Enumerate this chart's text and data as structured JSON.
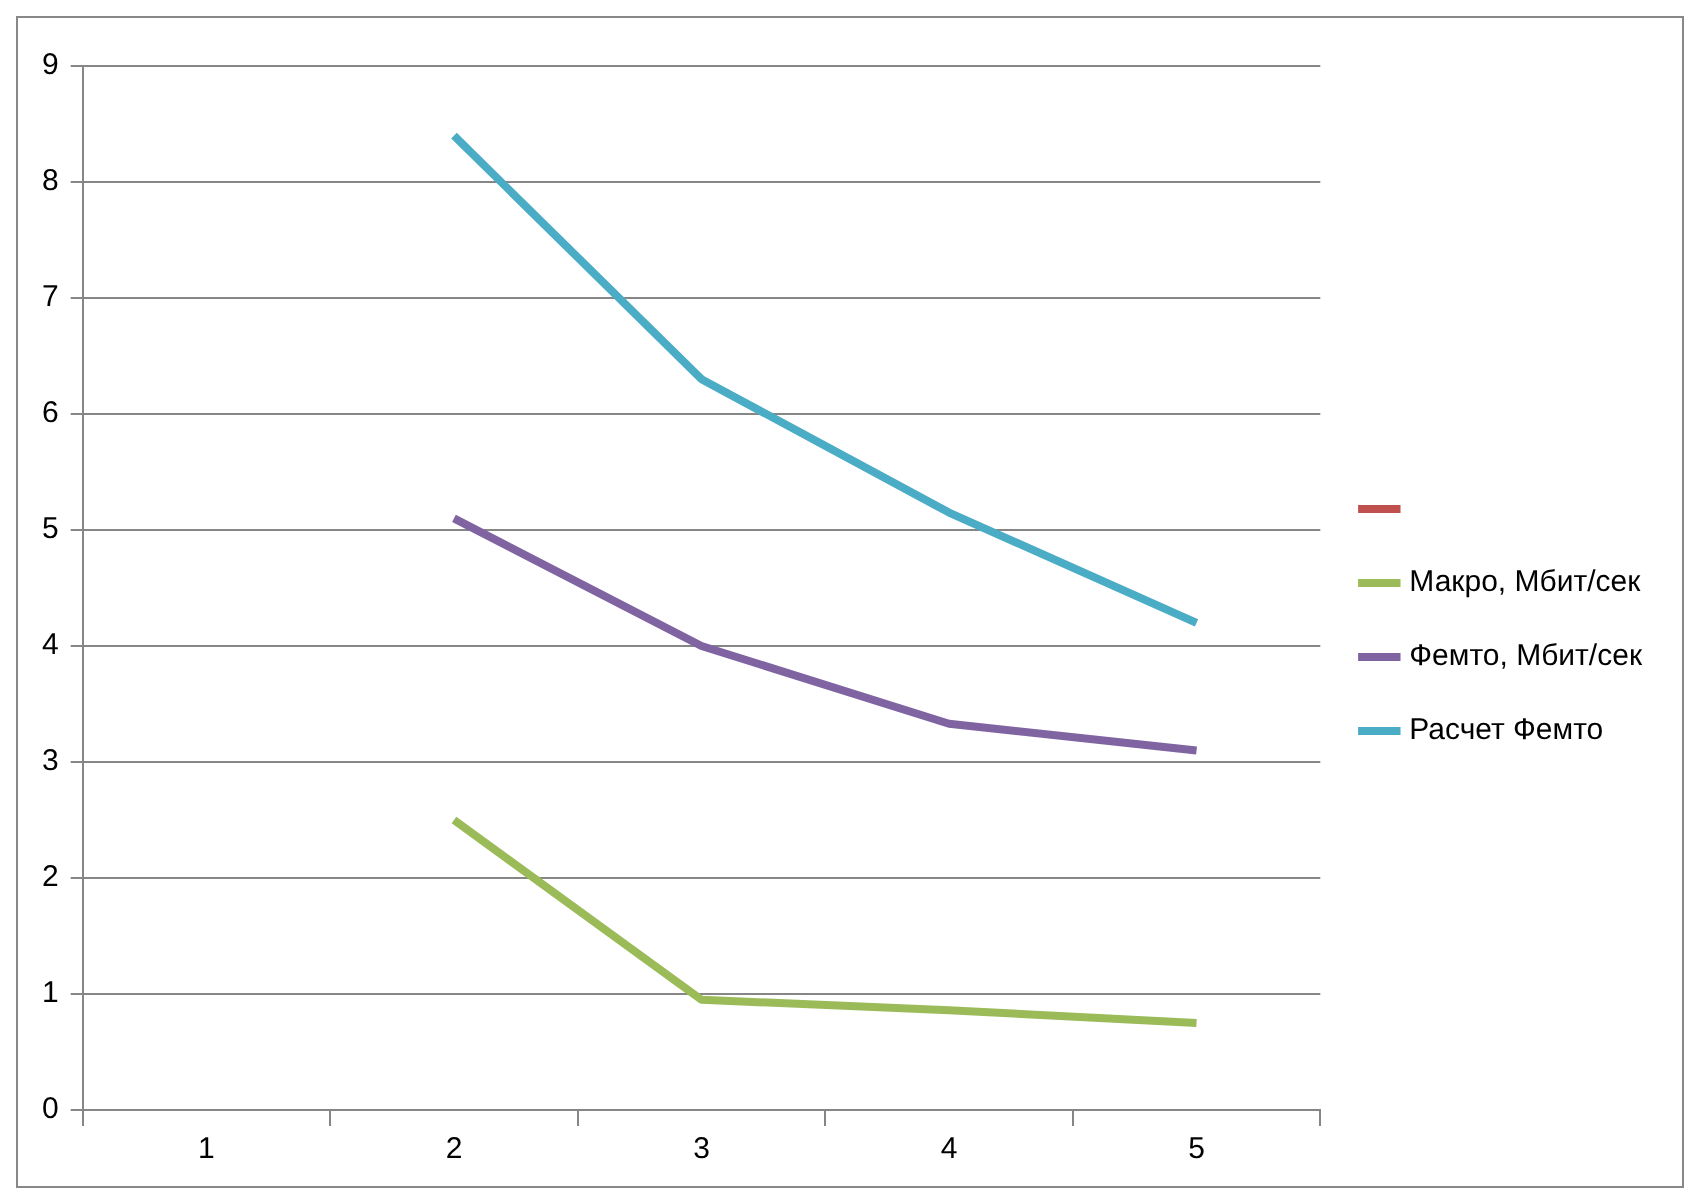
{
  "chart_data": {
    "type": "line",
    "categories": [
      "1",
      "2",
      "3",
      "4",
      "5"
    ],
    "series": [
      {
        "color": "#c0504d",
        "values": [
          null,
          null,
          null,
          null,
          null
        ]
      },
      {
        "name": "Макро, Мбит/сек",
        "color": "#9bbb59",
        "values": [
          null,
          2.5,
          0.95,
          0.86,
          0.75
        ]
      },
      {
        "name": "Фемто, Мбит/сек",
        "color": "#8064a2",
        "values": [
          null,
          5.1,
          4.0,
          3.33,
          3.1
        ]
      },
      {
        "name": "Расчет Фемто",
        "color": "#4bacc6",
        "values": [
          null,
          8.4,
          6.3,
          5.15,
          4.2
        ]
      }
    ],
    "ylim": [
      0,
      9
    ],
    "yticks": [
      0,
      1,
      2,
      3,
      4,
      5,
      6,
      7,
      8,
      9
    ],
    "grid": "y",
    "legend": "right",
    "marker": "none",
    "line_style": "solid"
  }
}
